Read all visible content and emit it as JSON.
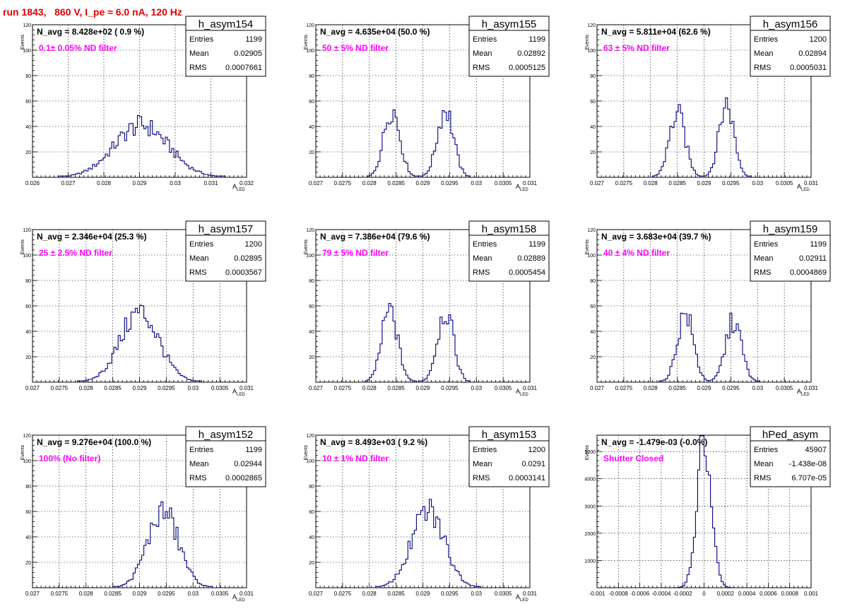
{
  "header": {
    "title": "run 1843,   860 V, I_pe ≈ 6.0 nA, 120 Hz"
  },
  "colors": {
    "title": "#e00000",
    "histogram": "#000080",
    "filter_label": "#ff00ff"
  },
  "chart_data": [
    {
      "type": "bar",
      "name": "h_asym154",
      "n_avg": "N_avg = 8.428e+02 ( 0.9 %)",
      "filter": "0.1± 0.05% ND filter",
      "stats": {
        "entries": "1199",
        "mean": "0.02905",
        "rms": "0.0007661"
      },
      "ylabel": "Events",
      "xlabel": "A",
      "xlabel_sub": "LED",
      "xlim": [
        0.026,
        0.032
      ],
      "ylim": [
        0,
        120
      ],
      "grid": true,
      "legend": "top-right",
      "xticks": [
        "0.026",
        "0.027",
        "0.028",
        "0.029",
        "0.03",
        "0.031",
        "0.032"
      ],
      "yticks": [
        "20",
        "40",
        "60",
        "80",
        "100",
        "120"
      ],
      "shape": {
        "type": "gauss",
        "peaks": [
          [
            0.02905,
            0.00076,
            41
          ]
        ]
      }
    },
    {
      "type": "bar",
      "name": "h_asym155",
      "n_avg": "N_avg = 4.635e+04 (50.0 %)",
      "filter": "50 ± 5% ND filter",
      "stats": {
        "entries": "1199",
        "mean": "0.02892",
        "rms": "0.0005125"
      },
      "ylabel": "Events",
      "xlabel": "A",
      "xlabel_sub": "LED",
      "xlim": [
        0.027,
        0.031
      ],
      "ylim": [
        0,
        120
      ],
      "grid": true,
      "legend": "top-right",
      "xticks": [
        "0.027",
        "0.0275",
        "0.028",
        "0.0285",
        "0.029",
        "0.0295",
        "0.03",
        "0.0305",
        "0.031"
      ],
      "yticks": [
        "20",
        "40",
        "60",
        "80",
        "100",
        "120"
      ],
      "shape": {
        "type": "gauss",
        "peaks": [
          [
            0.02842,
            0.00015,
            54
          ],
          [
            0.02942,
            0.00015,
            54
          ]
        ]
      }
    },
    {
      "type": "bar",
      "name": "h_asym156",
      "n_avg": "N_avg = 5.811e+04 (62.6 %)",
      "filter": "63 ± 5% ND filter",
      "stats": {
        "entries": "1200",
        "mean": "0.02894",
        "rms": "0.0005031"
      },
      "ylabel": "Events",
      "xlabel": "A",
      "xlabel_sub": "LED",
      "xlim": [
        0.027,
        0.031
      ],
      "ylim": [
        0,
        120
      ],
      "grid": true,
      "legend": "top-right",
      "xticks": [
        "0.027",
        "0.0275",
        "0.028",
        "0.0285",
        "0.029",
        "0.0295",
        "0.03",
        "0.0305",
        "0.031"
      ],
      "yticks": [
        "20",
        "40",
        "60",
        "80",
        "100",
        "120"
      ],
      "shape": {
        "type": "gauss",
        "peaks": [
          [
            0.0285,
            0.00015,
            50
          ],
          [
            0.02942,
            0.00014,
            58
          ]
        ]
      }
    },
    {
      "type": "bar",
      "name": "h_asym157",
      "n_avg": "N_avg = 2.346e+04 (25.3 %)",
      "filter": "25 ± 2.5% ND filter",
      "stats": {
        "entries": "1200",
        "mean": "0.02895",
        "rms": "0.0003567"
      },
      "ylabel": "Events",
      "xlabel": "A",
      "xlabel_sub": "LED",
      "xlim": [
        0.027,
        0.031
      ],
      "ylim": [
        0,
        120
      ],
      "grid": true,
      "legend": "top-right",
      "xticks": [
        "0.027",
        "0.0275",
        "0.028",
        "0.0285",
        "0.029",
        "0.0295",
        "0.03",
        "0.0305",
        "0.031"
      ],
      "yticks": [
        "20",
        "40",
        "60",
        "80",
        "100",
        "120"
      ],
      "shape": {
        "type": "gauss",
        "peaks": [
          [
            0.029,
            0.00036,
            55
          ]
        ]
      }
    },
    {
      "type": "bar",
      "name": "h_asym158",
      "n_avg": "N_avg = 7.386e+04 (79.6 %)",
      "filter": "79 ± 5% ND filter",
      "stats": {
        "entries": "1199",
        "mean": "0.02889",
        "rms": "0.0005454"
      },
      "ylabel": "Events",
      "xlabel": "A",
      "xlabel_sub": "LED",
      "xlim": [
        0.027,
        0.031
      ],
      "ylim": [
        0,
        120
      ],
      "grid": true,
      "legend": "top-right",
      "xticks": [
        "0.027",
        "0.0275",
        "0.028",
        "0.0285",
        "0.029",
        "0.0295",
        "0.03",
        "0.0305",
        "0.031"
      ],
      "yticks": [
        "20",
        "40",
        "60",
        "80",
        "100",
        "120"
      ],
      "shape": {
        "type": "gauss",
        "peaks": [
          [
            0.02838,
            0.00015,
            56
          ],
          [
            0.02942,
            0.00015,
            56
          ]
        ]
      }
    },
    {
      "type": "bar",
      "name": "h_asym159",
      "n_avg": "N_avg = 3.683e+04 (39.7 %)",
      "filter": "40 ± 4% ND filter",
      "stats": {
        "entries": "1199",
        "mean": "0.02911",
        "rms": "0.0004869"
      },
      "ylabel": "Events",
      "xlabel": "A",
      "xlabel_sub": "LED",
      "xlim": [
        0.027,
        0.031
      ],
      "ylim": [
        0,
        120
      ],
      "grid": true,
      "legend": "top-right",
      "xticks": [
        "0.027",
        "0.0275",
        "0.028",
        "0.0285",
        "0.029",
        "0.0295",
        "0.03",
        "0.0305",
        "0.031"
      ],
      "yticks": [
        "20",
        "40",
        "60",
        "80",
        "100",
        "120"
      ],
      "shape": {
        "type": "gauss",
        "peaks": [
          [
            0.02865,
            0.00015,
            54
          ],
          [
            0.02955,
            0.00015,
            48
          ]
        ]
      }
    },
    {
      "type": "bar",
      "name": "h_asym152",
      "n_avg": "N_avg = 9.276e+04 (100.0 %)",
      "filter": "100% (No filter)",
      "stats": {
        "entries": "1199",
        "mean": "0.02944",
        "rms": "0.0002865"
      },
      "ylabel": "Events",
      "xlabel": "A",
      "xlabel_sub": "LED",
      "xlim": [
        0.027,
        0.031
      ],
      "ylim": [
        0,
        120
      ],
      "grid": true,
      "legend": "top-right",
      "xticks": [
        "0.027",
        "0.0275",
        "0.028",
        "0.0285",
        "0.029",
        "0.0295",
        "0.03",
        "0.0305",
        "0.031"
      ],
      "yticks": [
        "20",
        "40",
        "60",
        "80",
        "100",
        "120"
      ],
      "shape": {
        "type": "gauss",
        "peaks": [
          [
            0.02944,
            0.00029,
            60
          ]
        ]
      }
    },
    {
      "type": "bar",
      "name": "h_asym153",
      "n_avg": "N_avg = 8.493e+03 ( 9.2 %)",
      "filter": "10 ± 1% ND filter",
      "stats": {
        "entries": "1200",
        "mean": "0.0291",
        "rms": "0.0003141"
      },
      "ylabel": "Events",
      "xlabel": "A",
      "xlabel_sub": "LED",
      "xlim": [
        0.027,
        0.031
      ],
      "ylim": [
        0,
        120
      ],
      "grid": true,
      "legend": "top-right",
      "xticks": [
        "0.027",
        "0.0275",
        "0.028",
        "0.0285",
        "0.029",
        "0.0295",
        "0.03",
        "0.0305",
        "0.031"
      ],
      "yticks": [
        "20",
        "40",
        "60",
        "80",
        "100",
        "120"
      ],
      "shape": {
        "type": "gauss",
        "peaks": [
          [
            0.0291,
            0.00031,
            60
          ]
        ]
      }
    },
    {
      "type": "bar",
      "name": "hPed_asym",
      "n_avg": "N_avg = -1.479e-03 (-0.0%)",
      "filter": "Shutter Closed",
      "stats": {
        "entries": "45907",
        "mean": "-1.438e-08",
        "rms": "6.707e-05"
      },
      "ylabel": "Events",
      "xlabel": "",
      "xlabel_sub": "",
      "xlim": [
        -0.001,
        0.001
      ],
      "ylim": [
        0,
        5600
      ],
      "grid": true,
      "legend": "top-right",
      "xticks": [
        "-0.001",
        "-0.0008",
        "-0.0006",
        "-0.0004",
        "-0.0002",
        "0",
        "0.0002",
        "0.0004",
        "0.0006",
        "0.0008",
        "0.001"
      ],
      "yticks": [
        "1000",
        "2000",
        "3000",
        "4000",
        "5000"
      ],
      "shape": {
        "type": "gauss",
        "peaks": [
          [
            0.0,
            6.7e-05,
            5300
          ]
        ]
      }
    }
  ],
  "stat_labels": {
    "entries": "Entries",
    "mean": "Mean",
    "rms": "RMS"
  }
}
